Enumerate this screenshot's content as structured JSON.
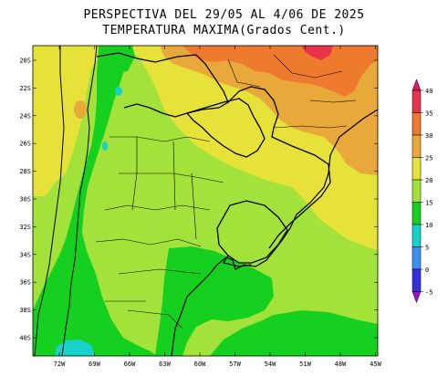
{
  "title": {
    "line1": "PERSPECTIVA DEL 29/05 AL 4/06 DE 2025",
    "line2": "TEMPERATURA MAXIMA(Grados Cent.)"
  },
  "axes": {
    "lat_labels": [
      "20S",
      "22S",
      "24S",
      "26S",
      "28S",
      "30S",
      "32S",
      "34S",
      "36S",
      "38S",
      "40S"
    ],
    "lon_labels": [
      "72W",
      "69W",
      "66W",
      "63W",
      "60W",
      "57W",
      "54W",
      "51W",
      "48W",
      "45W"
    ]
  },
  "colorbar": {
    "ticks": [
      "40",
      "35",
      "30",
      "25",
      "20",
      "15",
      "10",
      "5",
      "0",
      "-5"
    ],
    "levels": [
      {
        "range": "above 40",
        "color": "#e0166e"
      },
      {
        "range": "35-40",
        "color": "#e8334a"
      },
      {
        "range": "30-35",
        "color": "#ee7a2e"
      },
      {
        "range": "25-30",
        "color": "#e8a83a"
      },
      {
        "range": "20-25",
        "color": "#e6e23a"
      },
      {
        "range": "15-20",
        "color": "#a2e23a"
      },
      {
        "range": "10-15",
        "color": "#16d020"
      },
      {
        "range": "5-10",
        "color": "#16d2c8"
      },
      {
        "range": "0-5",
        "color": "#3b8ff0"
      },
      {
        "range": "-5-0",
        "color": "#3030e0"
      },
      {
        "range": "below -5",
        "color": "#9a10c8"
      }
    ]
  },
  "colors": {
    "ocean_default": "#a2e23a",
    "border": "#000000"
  }
}
